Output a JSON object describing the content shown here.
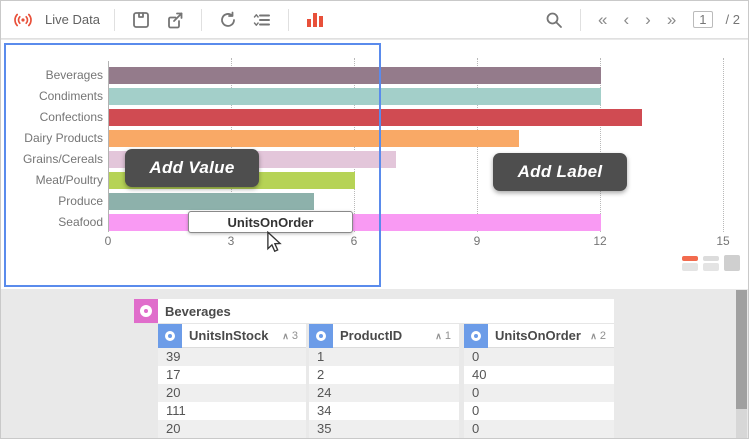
{
  "toolbar": {
    "live_label": "Live Data",
    "page_current": "1",
    "page_separator": "/",
    "page_total": "2"
  },
  "chart_data": {
    "type": "bar",
    "orientation": "horizontal",
    "title": "",
    "xlabel": "",
    "ylabel": "",
    "categories": [
      "Beverages",
      "Condiments",
      "Confections",
      "Dairy Products",
      "Grains/Cereals",
      "Meat/Poultry",
      "Produce",
      "Seafood"
    ],
    "values": [
      12,
      12,
      13,
      10,
      7,
      6,
      5,
      12
    ],
    "bar_colors": [
      "#947b8b",
      "#a3cfc9",
      "#d04b52",
      "#f9a966",
      "#e3c6da",
      "#b6d356",
      "#8db1ab",
      "#f99af3"
    ],
    "x_ticks": [
      0,
      3,
      6,
      9,
      12,
      15
    ],
    "xlim": [
      0,
      15
    ],
    "grid": "vertical-dotted",
    "legend_position": "none"
  },
  "overlays": {
    "add_value_label": "Add Value",
    "add_label_label": "Add Label",
    "tooltip_text": "UnitsOnOrder"
  },
  "table": {
    "group_title": "Beverages",
    "columns": [
      {
        "label": "UnitsInStock",
        "sort_order": "3"
      },
      {
        "label": "ProductID",
        "sort_order": "1"
      },
      {
        "label": "UnitsOnOrder",
        "sort_order": "2"
      }
    ],
    "rows": [
      [
        "39",
        "1",
        "0"
      ],
      [
        "17",
        "2",
        "40"
      ],
      [
        "20",
        "24",
        "0"
      ],
      [
        "111",
        "34",
        "0"
      ],
      [
        "20",
        "35",
        "0"
      ]
    ]
  },
  "colors": {
    "accent_red": "#e8503a",
    "selection_blue": "#5a8bec",
    "group_icon_pink": "#e06dcb",
    "column_icon_blue": "#6c9ce8",
    "row_stripe": "#efefef"
  },
  "icons": {
    "toolbar_left": [
      "live-data-icon",
      "save-icon",
      "export-icon",
      "refresh-icon",
      "filter-list-icon",
      "bar-chart-icon"
    ],
    "toolbar_right": [
      "search-icon",
      "first-page-icon",
      "prev-page-icon",
      "next-page-icon",
      "last-page-icon"
    ]
  }
}
